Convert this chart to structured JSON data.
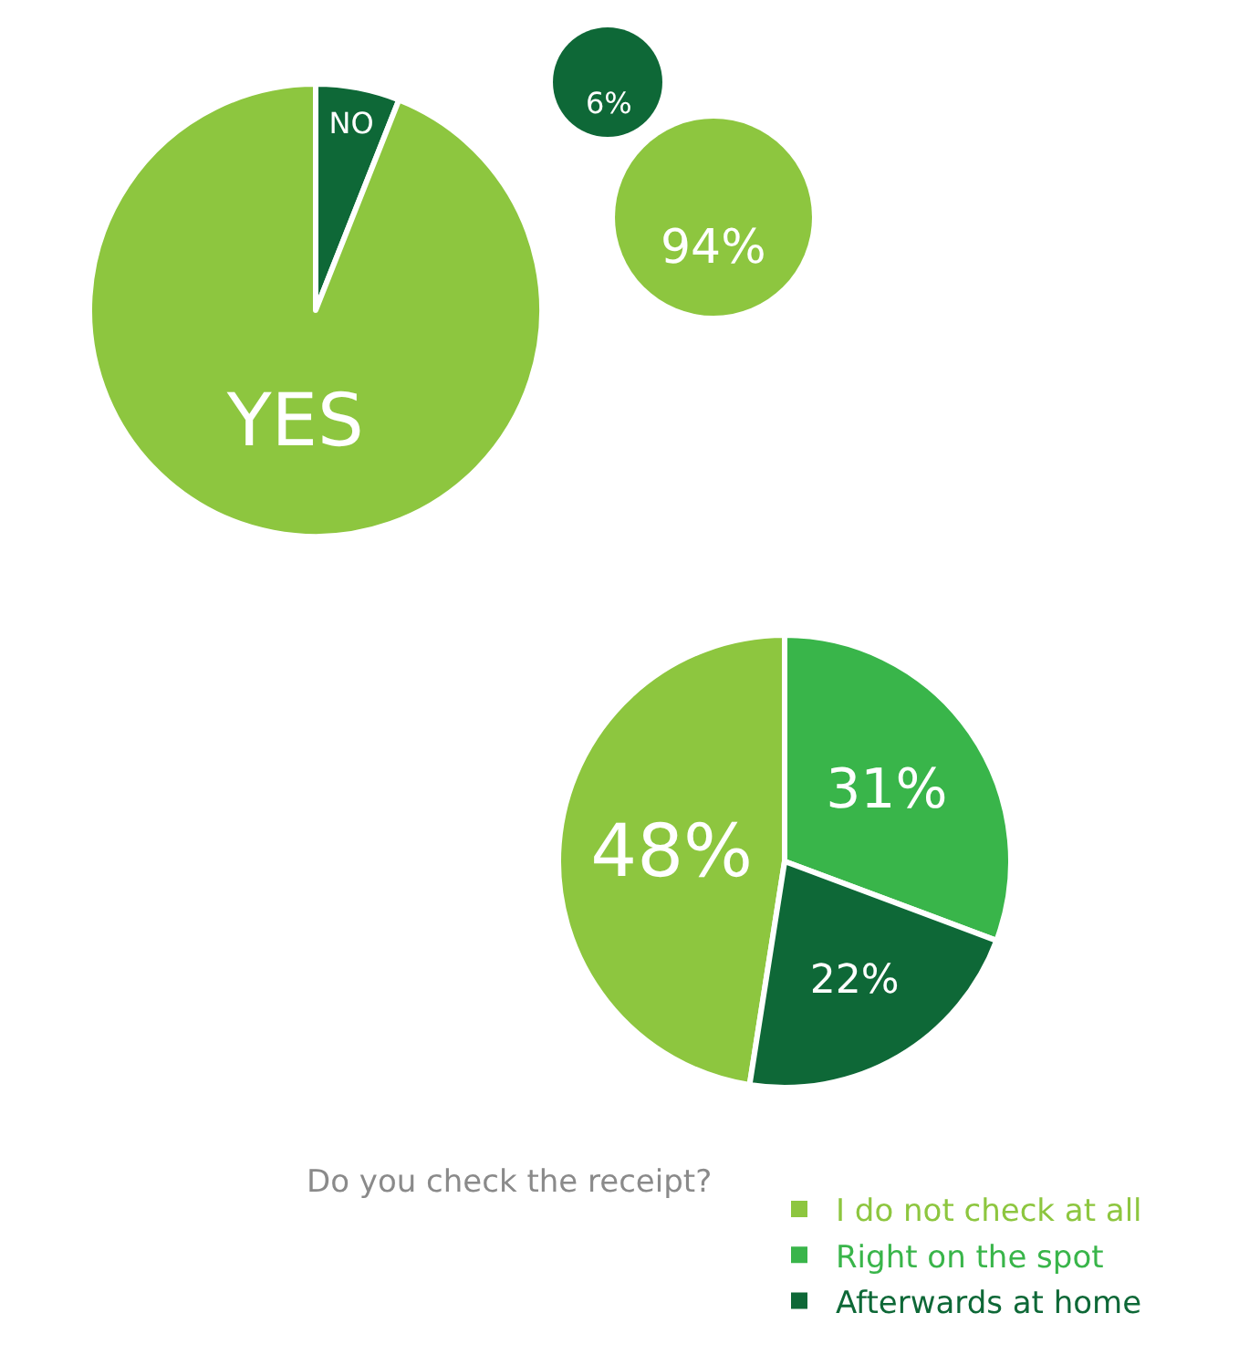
{
  "chart_data": [
    {
      "type": "pie",
      "categories": [
        "NO",
        "YES"
      ],
      "values": [
        6,
        94
      ],
      "colors": [
        "#0e6837",
        "#8dc63f"
      ],
      "annotations": [
        "6%",
        "94%"
      ]
    },
    {
      "type": "pie",
      "title": "Do you check the receipt?",
      "categories": [
        "I do not check at all",
        "Right on the spot",
        "Afterwards at home"
      ],
      "values": [
        48,
        31,
        22
      ],
      "colors": [
        "#8dc63f",
        "#39b54a",
        "#0e6837"
      ],
      "value_labels": [
        "48%",
        "31%",
        "22%"
      ],
      "legend": "bottom right"
    }
  ]
}
